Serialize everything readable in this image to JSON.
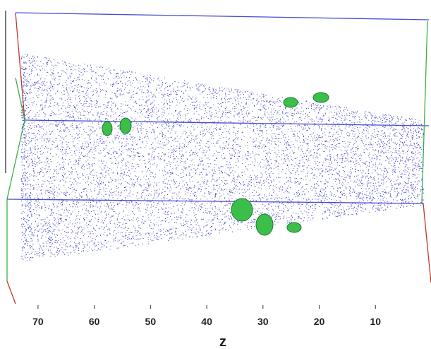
{
  "axis": {
    "label": "z",
    "lim": [
      74,
      0
    ],
    "ticks": [
      70,
      60,
      50,
      40,
      30,
      20,
      10
    ]
  }
}
